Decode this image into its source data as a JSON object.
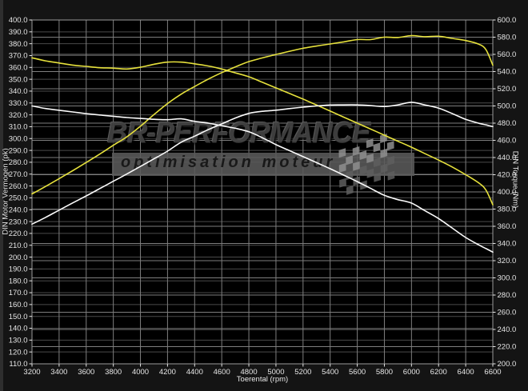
{
  "window": {
    "bg": "#141414"
  },
  "watermark": {
    "brand": "BR-PERFORMANCE",
    "tagline": "optimisation moteur"
  },
  "axes": {
    "left_title": "DIN Motor Vermogen (pk)",
    "right_title": "DIN Torque (Nm)",
    "x_title": "Toerental (rpm)",
    "left_tick_labels": [
      "400.0",
      "390.0",
      "380.0",
      "370.0",
      "360.0",
      "350.0",
      "340.0",
      "330.0",
      "320.0",
      "310.0",
      "300.0",
      "290.0",
      "280.0",
      "270.0",
      "260.0",
      "250.0",
      "240.0",
      "230.0",
      "220.0",
      "210.0",
      "200.0",
      "190.0",
      "180.0",
      "170.0",
      "160.0",
      "150.0",
      "140.0",
      "130.0",
      "120.0",
      "110.0"
    ],
    "right_tick_labels": [
      "600.0",
      "580.0",
      "560.0",
      "540.0",
      "520.0",
      "500.0",
      "480.0",
      "460.0",
      "440.0",
      "420.0",
      "400.0",
      "380.0",
      "360.0",
      "340.0",
      "320.0",
      "300.0",
      "280.0",
      "260.0",
      "240.0",
      "220.0",
      "200.0"
    ],
    "x_tick_labels": [
      "3200",
      "3400",
      "3600",
      "3800",
      "4000",
      "4200",
      "4400",
      "4600",
      "4800",
      "5000",
      "5200",
      "5400",
      "5600",
      "5800",
      "6000",
      "6200",
      "6400",
      "6600"
    ]
  },
  "colors": {
    "plot_bg": "#000000",
    "grid_left": "#4a4a4a",
    "grid_right": "#7e7e7e",
    "grid_vertical": "#7e7e7e",
    "frame": "#9a9a9a",
    "tick_text": "#e6e6e6",
    "curve_tuned": "#e6e13c",
    "curve_original": "#fafafa",
    "watermark_text": "#414141",
    "watermark_bar": "#5a5a5a"
  },
  "chart_data": {
    "type": "line",
    "title": "",
    "xlabel": "Toerental (rpm)",
    "ylabel_left": "DIN Motor Vermogen (pk)",
    "ylabel_right": "DIN Torque (Nm)",
    "x_range": [
      3200,
      6600
    ],
    "x_tick_step": 200,
    "left_range": [
      110,
      400
    ],
    "left_tick_step": 10,
    "right_range": [
      200,
      600
    ],
    "right_tick_step": 20,
    "grid": true,
    "legend": "none",
    "x": [
      3200,
      3300,
      3400,
      3500,
      3600,
      3700,
      3800,
      3900,
      4000,
      4100,
      4200,
      4300,
      4400,
      4500,
      4600,
      4700,
      4800,
      4900,
      5000,
      5100,
      5200,
      5300,
      5400,
      5500,
      5600,
      5700,
      5800,
      5900,
      6000,
      6100,
      6200,
      6300,
      6400,
      6500,
      6550,
      6600
    ],
    "series": [
      {
        "name": "power-tuned",
        "axis": "left",
        "color_key": "curve_tuned",
        "values": [
          253.3,
          259.6,
          266.2,
          272.9,
          279.8,
          286.9,
          294.3,
          301.5,
          310.4,
          320.2,
          329.5,
          337.4,
          343.9,
          350.1,
          355.6,
          360.4,
          364.9,
          368.0,
          370.9,
          373.6,
          376.1,
          378.0,
          379.8,
          381.5,
          383.5,
          383.5,
          385.5,
          385.2,
          386.8,
          385.9,
          386.3,
          384.5,
          382.7,
          379.4,
          374.9,
          361.8
        ]
      },
      {
        "name": "torque-tuned",
        "axis": "right",
        "color_key": "curve_tuned",
        "values": [
          556,
          552.5,
          550,
          547.5,
          546,
          544.5,
          544,
          543,
          545,
          548.5,
          551,
          551,
          549,
          546.5,
          543,
          538.5,
          534,
          527.5,
          521,
          514.5,
          508,
          501,
          494,
          487,
          480,
          473,
          466,
          459,
          452,
          444.5,
          437,
          429,
          420,
          410,
          402,
          385
        ]
      },
      {
        "name": "power-original",
        "axis": "left",
        "color_key": "curve_original",
        "values": [
          227.8,
          233.5,
          239.6,
          245.7,
          251.6,
          257.8,
          264.0,
          270.1,
          276.5,
          282.9,
          289.4,
          296.9,
          302.0,
          307.5,
          312.4,
          317.3,
          321.2,
          323.0,
          323.9,
          325.3,
          326.5,
          327.5,
          328.3,
          328.4,
          328.4,
          327.8,
          327.0,
          328.4,
          330.6,
          328.3,
          325.7,
          321.1,
          316.2,
          312.8,
          311.5,
          310.1
        ]
      },
      {
        "name": "torque-original",
        "axis": "right",
        "color_key": "curve_original",
        "values": [
          500,
          497,
          495,
          493,
          491,
          489.5,
          488,
          486.5,
          485.5,
          484.5,
          484,
          485,
          482,
          480,
          477,
          474,
          470,
          463,
          455,
          448,
          441,
          434,
          427,
          419.5,
          412,
          404,
          396,
          391,
          387,
          378,
          369,
          358,
          347,
          338,
          334,
          330
        ]
      }
    ]
  }
}
